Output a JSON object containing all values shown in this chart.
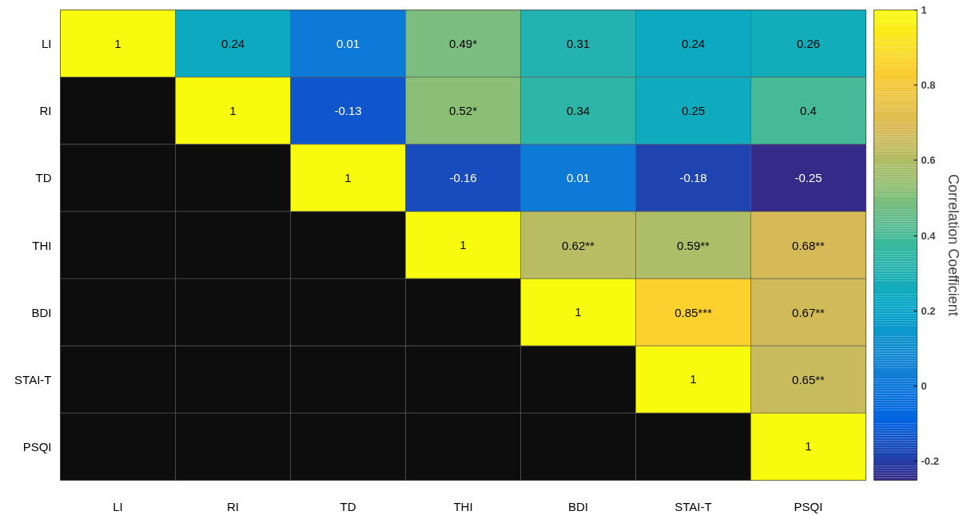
{
  "chart_data": {
    "type": "heatmap",
    "clabel": "Correlation Coefficient",
    "categories": [
      "LI",
      "RI",
      "TD",
      "THI",
      "BDI",
      "STAI-T",
      "PSQI"
    ],
    "y_categories": [
      "LI",
      "RI",
      "TD",
      "THI",
      "BDI",
      "STAI-T",
      "PSQI"
    ],
    "cells": [
      [
        1,
        0.24,
        0.01,
        0.49,
        0.31,
        0.24,
        0.26
      ],
      [
        null,
        1,
        -0.13,
        0.52,
        0.34,
        0.25,
        0.4
      ],
      [
        null,
        null,
        1,
        -0.16,
        0.01,
        -0.18,
        -0.25
      ],
      [
        null,
        null,
        null,
        1,
        0.62,
        0.59,
        0.68
      ],
      [
        null,
        null,
        null,
        null,
        1,
        0.85,
        0.67
      ],
      [
        null,
        null,
        null,
        null,
        null,
        1,
        0.65
      ],
      [
        null,
        null,
        null,
        null,
        null,
        null,
        1
      ]
    ],
    "cell_labels": [
      [
        "1",
        "0.24",
        "0.01",
        "0.49*",
        "0.31",
        "0.24",
        "0.26"
      ],
      [
        null,
        "1",
        "-0.13",
        "0.52*",
        "0.34",
        "0.25",
        "0.4"
      ],
      [
        null,
        null,
        "1",
        "-0.16",
        "0.01",
        "-0.18",
        "-0.25"
      ],
      [
        null,
        null,
        null,
        "1",
        "0.62**",
        "0.59**",
        "0.68**"
      ],
      [
        null,
        null,
        null,
        null,
        "1",
        "0.85***",
        "0.67**"
      ],
      [
        null,
        null,
        null,
        null,
        null,
        "1",
        "0.65**"
      ],
      [
        null,
        null,
        null,
        null,
        null,
        null,
        "1"
      ]
    ],
    "clim": [
      -0.25,
      1
    ],
    "cticks": [
      -0.2,
      0,
      0.2,
      0.4,
      0.6,
      0.8,
      1
    ]
  }
}
